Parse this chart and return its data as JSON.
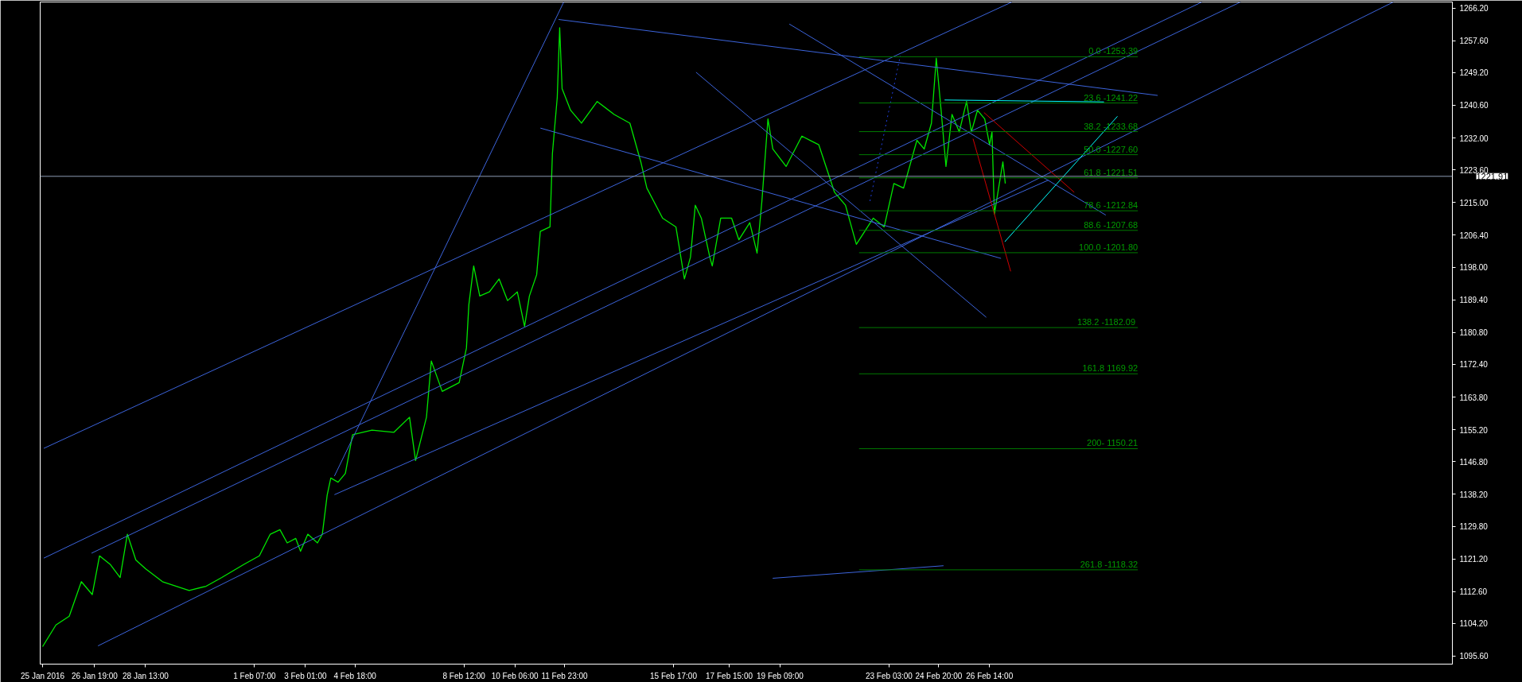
{
  "chart_data": {
    "type": "line",
    "x": [
      "2016-01-25T00:00",
      "2016-01-25T11:00",
      "2016-01-25T22:00",
      "2016-01-26T08:00",
      "2016-01-26T17:00",
      "2016-01-26T23:00",
      "2016-01-27T08:00",
      "2016-01-27T16:00",
      "2016-01-27T22:00",
      "2016-01-28T05:00",
      "2016-01-28T13:00",
      "2016-01-29T03:00",
      "2016-01-30T01:00",
      "2016-01-30T15:00",
      "2016-01-31T04:00",
      "2016-01-31T22:00",
      "2016-02-01T11:00",
      "2016-02-01T20:00",
      "2016-02-02T04:00",
      "2016-02-02T10:00",
      "2016-02-02T17:00",
      "2016-02-02T21:00",
      "2016-02-03T03:00",
      "2016-02-03T11:00",
      "2016-02-03T15:00",
      "2016-02-03T19:00",
      "2016-02-03T22:00",
      "2016-02-04T04:00",
      "2016-02-04T10:00",
      "2016-02-04T16:00",
      "2016-02-05T08:00",
      "2016-02-06T02:00",
      "2016-02-06T15:00",
      "2016-02-06T20:00",
      "2016-02-07T05:00",
      "2016-02-07T09:00",
      "2016-02-07T18:00",
      "2016-02-08T08:00",
      "2016-02-08T14:00",
      "2016-02-08T16:00",
      "2016-02-08T20:00",
      "2016-02-09T01:00",
      "2016-02-09T09:00",
      "2016-02-09T17:00",
      "2016-02-10T00:00",
      "2016-02-10T08:00",
      "2016-02-10T14:00",
      "2016-02-10T18:00",
      "2016-02-11T00:00",
      "2016-02-11T03:00",
      "2016-02-11T11:00",
      "2016-02-11T13:00",
      "2016-02-11T17:00",
      "2016-02-11T19:00",
      "2016-02-11T21:00",
      "2016-02-12T04:00",
      "2016-02-12T13:00",
      "2016-02-13T02:00",
      "2016-02-13T16:00",
      "2016-02-14T05:00",
      "2016-02-14T14:00",
      "2016-02-14T19:00",
      "2016-02-15T08:00",
      "2016-02-15T19:00",
      "2016-02-16T02:00",
      "2016-02-16T07:00",
      "2016-02-16T11:00",
      "2016-02-16T16:00",
      "2016-02-16T23:00",
      "2016-02-17T01:00",
      "2016-02-17T08:00",
      "2016-02-17T17:00",
      "2016-02-17T23:00",
      "2016-02-18T08:00",
      "2016-02-18T14:00",
      "2016-02-18T18:00",
      "2016-02-18T23:00",
      "2016-02-19T03:00",
      "2016-02-19T14:00",
      "2016-02-20T03:00",
      "2016-02-20T17:00",
      "2016-02-21T06:00",
      "2016-02-21T15:00",
      "2016-02-22T00:00",
      "2016-02-22T14:00",
      "2016-02-22T23:00",
      "2016-02-23T07:00",
      "2016-02-23T15:00",
      "2016-02-24T02:00",
      "2016-02-24T08:00",
      "2016-02-24T14:00",
      "2016-02-24T18:00",
      "2016-02-24T22:00",
      "2016-02-25T02:00",
      "2016-02-25T07:00",
      "2016-02-25T13:00",
      "2016-02-25T19:00",
      "2016-02-25T23:00",
      "2016-02-26T04:00",
      "2016-02-26T10:00",
      "2016-02-26T14:00",
      "2016-02-26T16:00",
      "2016-02-26T18:00",
      "2016-02-27T01:00",
      "2016-02-27T03:00"
    ],
    "xlim": [
      "2016-01-24T22:00",
      "2016-03-13T12:12"
    ],
    "ylim": [
      1093.5,
      1267.8
    ],
    "xticks": [
      {
        "value": "2016-01-25T00:00",
        "label": "25 Jan 2016"
      },
      {
        "value": "2016-01-26T19:00",
        "label": "26 Jan 19:00"
      },
      {
        "value": "2016-01-28T13:00",
        "label": "28 Jan 13:00"
      },
      {
        "value": "2016-02-01T07:00",
        "label": "1 Feb 07:00"
      },
      {
        "value": "2016-02-03T01:00",
        "label": "3 Feb 01:00"
      },
      {
        "value": "2016-02-04T18:00",
        "label": "4 Feb 18:00"
      },
      {
        "value": "2016-02-08T12:00",
        "label": "8 Feb 12:00"
      },
      {
        "value": "2016-02-10T06:00",
        "label": "10 Feb 06:00"
      },
      {
        "value": "2016-02-11T23:00",
        "label": "11 Feb 23:00"
      },
      {
        "value": "2016-02-15T17:00",
        "label": "15 Feb 17:00"
      },
      {
        "value": "2016-02-17T15:00",
        "label": "17 Feb 15:00"
      },
      {
        "value": "2016-02-19T09:00",
        "label": "19 Feb 09:00"
      },
      {
        "value": "2016-02-23T03:00",
        "label": "23 Feb 03:00"
      },
      {
        "value": "2016-02-24T20:00",
        "label": "24 Feb 20:00"
      },
      {
        "value": "2016-02-26T14:00",
        "label": "26 Feb 14:00"
      }
    ],
    "yticks": [
      {
        "value": 1095.6,
        "label": "1095.60"
      },
      {
        "value": 1104.2,
        "label": "1104.20"
      },
      {
        "value": 1112.6,
        "label": "1112.60"
      },
      {
        "value": 1121.2,
        "label": "1121.20"
      },
      {
        "value": 1129.8,
        "label": "1129.80"
      },
      {
        "value": 1138.2,
        "label": "1138.20"
      },
      {
        "value": 1146.8,
        "label": "1146.80"
      },
      {
        "value": 1155.2,
        "label": "1155.20"
      },
      {
        "value": 1163.8,
        "label": "1163.80"
      },
      {
        "value": 1172.4,
        "label": "1172.40"
      },
      {
        "value": 1180.8,
        "label": "1180.80"
      },
      {
        "value": 1189.4,
        "label": "1189.40"
      },
      {
        "value": 1198.0,
        "label": "1198.00"
      },
      {
        "value": 1206.4,
        "label": "1206.40"
      },
      {
        "value": 1215.0,
        "label": "1215.00"
      },
      {
        "value": 1223.6,
        "label": "1223.60"
      },
      {
        "value": 1232.0,
        "label": "1232.00"
      },
      {
        "value": 1240.6,
        "label": "1240.60"
      },
      {
        "value": 1249.2,
        "label": "1249.20"
      },
      {
        "value": 1257.6,
        "label": "1257.60"
      },
      {
        "value": 1266.2,
        "label": "1266.20"
      }
    ],
    "grid": false,
    "line_style": "solid",
    "series": [
      {
        "color": "#00e600",
        "values": [
          1098.1,
          1103.8,
          1106.1,
          1115.2,
          1111.8,
          1122.0,
          1119.7,
          1116.3,
          1127.7,
          1120.9,
          1118.6,
          1115.2,
          1112.9,
          1114.0,
          1116.3,
          1119.7,
          1122.0,
          1127.7,
          1128.9,
          1125.4,
          1126.6,
          1123.2,
          1127.7,
          1125.4,
          1127.7,
          1138.0,
          1142.5,
          1141.4,
          1143.7,
          1153.9,
          1155.1,
          1154.5,
          1158.5,
          1147.1,
          1158.5,
          1173.3,
          1165.3,
          1167.6,
          1176.7,
          1188.1,
          1198.3,
          1190.4,
          1191.5,
          1194.9,
          1189.2,
          1191.5,
          1182.4,
          1190.4,
          1196.0,
          1207.4,
          1208.6,
          1227.9,
          1242.7,
          1261.0,
          1245.0,
          1239.3,
          1235.9,
          1241.6,
          1238.2,
          1235.9,
          1225.7,
          1218.8,
          1210.9,
          1208.6,
          1194.9,
          1200.6,
          1214.3,
          1210.9,
          1200.6,
          1198.3,
          1210.9,
          1210.9,
          1205.2,
          1209.7,
          1201.7,
          1215.4,
          1237.0,
          1229.1,
          1224.5,
          1232.5,
          1230.2,
          1217.7,
          1214.3,
          1204.0,
          1210.9,
          1208.6,
          1220.0,
          1218.8,
          1231.4,
          1229.1,
          1235.9,
          1253.0,
          1239.3,
          1224.5,
          1238.2,
          1233.6,
          1241.6,
          1233.6,
          1239.3,
          1237.0,
          1230.2,
          1233.6,
          1212.0,
          1225.7,
          1220.0
        ]
      },
      {
        "type": "line",
        "color": "#3c64dc",
        "x": [
          "2016-01-25T01:00",
          "2016-02-27T08:29"
        ],
        "values": [
          1150.3,
          1267.8
        ]
      },
      {
        "type": "line",
        "color": "#3c64dc",
        "x": [
          "2016-01-25T01:00",
          "2016-03-04T21:21"
        ],
        "values": [
          1121.4,
          1267.8
        ]
      },
      {
        "type": "line",
        "color": "#3c64dc",
        "x": [
          "2016-01-26T16:25",
          "2016-03-06T05:16"
        ],
        "values": [
          1122.7,
          1267.8
        ]
      },
      {
        "type": "line",
        "color": "#3c64dc",
        "x": [
          "2016-01-26T21:44",
          "2016-03-11T11:29"
        ],
        "values": [
          1098.3,
          1267.8
        ]
      },
      {
        "type": "line",
        "color": "#3c64dc",
        "x": [
          "2016-02-04T00:59",
          "2016-02-28T14:31"
        ],
        "values": [
          1138.1,
          1220.9
        ]
      },
      {
        "type": "line",
        "color": "#3c64dc",
        "x": [
          "2016-02-04T00:59",
          "2016-02-11T22:23"
        ],
        "values": [
          1143.0,
          1267.8
        ]
      },
      {
        "type": "line",
        "color": "#3c64dc",
        "x": [
          "2016-02-11T18:05",
          "2016-03-03T08:49"
        ],
        "values": [
          1263.2,
          1243.2
        ]
      },
      {
        "type": "line",
        "color": "#3c64dc",
        "x": [
          "2016-02-11T03:07",
          "2016-02-26T23:27"
        ],
        "values": [
          1234.6,
          1200.3
        ]
      },
      {
        "type": "line",
        "color": "#3c64dc",
        "x": [
          "2016-02-16T11:38",
          "2016-02-26T11:16"
        ],
        "values": [
          1249.3,
          1184.8
        ]
      },
      {
        "type": "line",
        "color": "#3c64dc",
        "x": [
          "2016-02-19T16:39",
          "2016-03-01T13:58"
        ],
        "values": [
          1262.0,
          1211.7
        ]
      },
      {
        "type": "line",
        "color": "#3c64dc",
        "x": [
          "2016-02-19T02:55",
          "2016-02-24T23:59"
        ],
        "values": [
          1116.1,
          1119.4
        ]
      },
      {
        "type": "line",
        "color": "#2040e0",
        "line_style": "dotted",
        "x": [
          "2016-02-22T11:15",
          "2016-02-23T12:14"
        ],
        "values": [
          1215.4,
          1253.6
        ]
      },
      {
        "type": "line",
        "color": "#d00000",
        "x": [
          "2016-02-26T00:21",
          "2016-02-27T07:26"
        ],
        "values": [
          1231.8,
          1196.9
        ]
      },
      {
        "type": "line",
        "color": "#d00000",
        "x": [
          "2016-02-26T09:23",
          "2016-02-29T11:56"
        ],
        "values": [
          1238.7,
          1217.7
        ]
      },
      {
        "type": "line",
        "color": "#00ffff",
        "x": [
          "2016-02-25T00:50",
          "2016-03-01T12:30"
        ],
        "values": [
          1242.0,
          1241.5
        ]
      },
      {
        "type": "line",
        "color": "#00ffff",
        "x": [
          "2016-02-27T02:36",
          "2016-03-01T23:38"
        ],
        "values": [
          1204.7,
          1237.7
        ]
      },
      {
        "type": "line",
        "color": "#007a00",
        "x": [
          "2016-02-22T02:15",
          "2016-03-02T16:26"
        ],
        "values": [
          1253.39,
          1253.39
        ]
      },
      {
        "type": "line",
        "color": "#007a00",
        "x": [
          "2016-02-22T02:15",
          "2016-03-02T16:26"
        ],
        "values": [
          1241.22,
          1241.22
        ]
      },
      {
        "type": "line",
        "color": "#007a00",
        "x": [
          "2016-02-22T02:15",
          "2016-03-02T16:26"
        ],
        "values": [
          1233.68,
          1233.68
        ]
      },
      {
        "type": "line",
        "color": "#007a00",
        "x": [
          "2016-02-22T02:15",
          "2016-03-02T16:26"
        ],
        "values": [
          1227.6,
          1227.6
        ]
      },
      {
        "type": "line",
        "color": "#007a00",
        "x": [
          "2016-02-22T02:15",
          "2016-03-02T16:26"
        ],
        "values": [
          1221.51,
          1221.51
        ]
      },
      {
        "type": "line",
        "color": "#007a00",
        "x": [
          "2016-02-22T02:15",
          "2016-03-02T16:26"
        ],
        "values": [
          1212.84,
          1212.84
        ]
      },
      {
        "type": "line",
        "color": "#007a00",
        "x": [
          "2016-02-22T02:15",
          "2016-03-02T16:26"
        ],
        "values": [
          1207.68,
          1207.68
        ]
      },
      {
        "type": "line",
        "color": "#007a00",
        "x": [
          "2016-02-22T02:15",
          "2016-03-02T16:26"
        ],
        "values": [
          1201.8,
          1201.8
        ]
      },
      {
        "type": "line",
        "color": "#007a00",
        "x": [
          "2016-02-22T02:15",
          "2016-03-02T16:26"
        ],
        "values": [
          1182.09,
          1182.09
        ]
      },
      {
        "type": "line",
        "color": "#007a00",
        "x": [
          "2016-02-22T02:15",
          "2016-03-02T16:26"
        ],
        "values": [
          1169.92,
          1169.92
        ]
      },
      {
        "type": "line",
        "color": "#007a00",
        "x": [
          "2016-02-22T02:15",
          "2016-03-02T16:26"
        ],
        "values": [
          1150.21,
          1150.21
        ]
      },
      {
        "type": "line",
        "color": "#007a00",
        "x": [
          "2016-02-22T02:15",
          "2016-03-02T16:26"
        ],
        "values": [
          1118.32,
          1118.32
        ]
      }
    ],
    "annotations": [
      {
        "text": "0.0 -1253.39",
        "x": "2016-03-02T16:26",
        "y": 1253.39
      },
      {
        "text": "23.6 -1241.22",
        "x": "2016-03-02T16:26",
        "y": 1241.22
      },
      {
        "text": "38.2 -1233.68",
        "x": "2016-03-02T16:26",
        "y": 1233.68
      },
      {
        "text": "50.0 -1227.60",
        "x": "2016-03-02T16:26",
        "y": 1227.6
      },
      {
        "text": "61.8 -1221.51",
        "x": "2016-03-02T16:26",
        "y": 1221.51
      },
      {
        "text": "78.6 -1212.84",
        "x": "2016-03-02T16:26",
        "y": 1212.84
      },
      {
        "text": "88.6 -1207.68",
        "x": "2016-03-02T16:26",
        "y": 1207.68
      },
      {
        "text": "100.0 -1201.80",
        "x": "2016-03-02T16:26",
        "y": 1201.8
      },
      {
        "text": "138.2  -1182.09",
        "x": "2016-03-02T16:26",
        "y": 1182.09
      },
      {
        "text": "161.8 1169.92",
        "x": "2016-03-02T16:26",
        "y": 1169.92
      },
      {
        "text": "200- 1150.21",
        "x": "2016-03-02T16:26",
        "y": 1150.21
      },
      {
        "text": "261.8 -1118.32",
        "x": "2016-03-02T16:26",
        "y": 1118.32
      }
    ],
    "ref_lines": [
      {
        "axis": "y",
        "value": 1221.91,
        "label": "1221.91",
        "color": "#8c9bb4"
      }
    ]
  }
}
